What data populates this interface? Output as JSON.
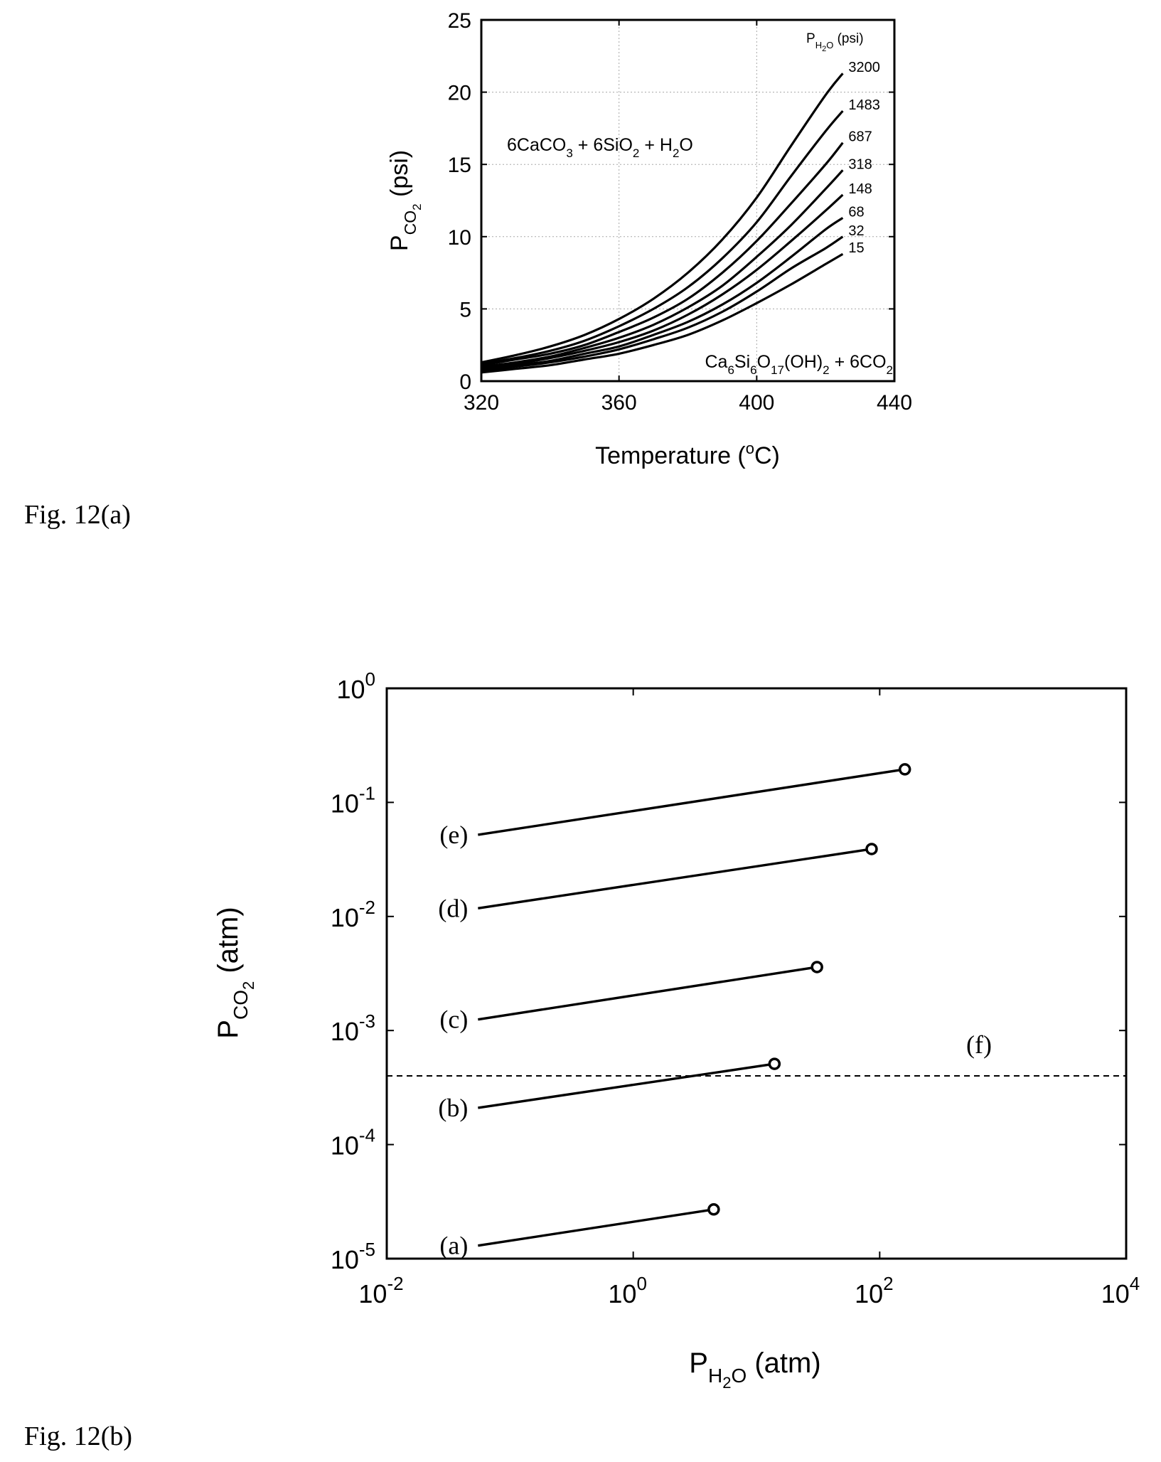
{
  "captions": {
    "fig_a": "Fig. 12(a)",
    "fig_b": "Fig. 12(b)"
  },
  "chart_data": [
    {
      "type": "line",
      "xlabel": "Temperature (oC)",
      "xlabel_parts": {
        "main": "Temperature (",
        "sup": "o",
        "tail": "C)"
      },
      "ylabel": "PCO2 (psi)",
      "ylabel_parts": {
        "main": "P",
        "sub": "CO",
        "subsub": "2",
        "tail": " (psi)"
      },
      "xlim": [
        320,
        440
      ],
      "ylim": [
        0,
        25
      ],
      "x_ticks": [
        "320",
        "360",
        "400",
        "440"
      ],
      "y_ticks": [
        "0",
        "5",
        "10",
        "15",
        "20",
        "25"
      ],
      "grid": true,
      "legend_title": "PH2O (psi)",
      "legend_title_parts": {
        "main": "P",
        "sub": "H",
        "sub2": "2",
        "sub3": "O",
        "tail": " (psi)"
      },
      "annotation_top": "6CaCO3 + 6SiO2 + H2O",
      "annotation_top_parts": [
        "6CaCO",
        "3",
        " + 6SiO",
        "2",
        " + H",
        "2",
        "O"
      ],
      "annotation_bottom": "Ca6Si6O17(OH)2 + 6CO2",
      "annotation_bottom_parts": [
        "Ca",
        "6",
        "Si",
        "6",
        "O",
        "17",
        "(OH)",
        "2",
        " + 6CO",
        "2"
      ],
      "curve_x": [
        320,
        330,
        340,
        350,
        360,
        370,
        380,
        390,
        400,
        410,
        420,
        425
      ],
      "series": [
        {
          "name": "3200",
          "values": [
            1.3,
            1.8,
            2.4,
            3.2,
            4.3,
            5.7,
            7.5,
            9.8,
            12.7,
            16.3,
            19.8,
            21.3
          ]
        },
        {
          "name": "1483",
          "values": [
            1.2,
            1.6,
            2.1,
            2.8,
            3.8,
            5.0,
            6.5,
            8.5,
            11.0,
            14.2,
            17.3,
            18.7
          ]
        },
        {
          "name": "687",
          "values": [
            1.1,
            1.5,
            1.9,
            2.5,
            3.4,
            4.4,
            5.7,
            7.5,
            9.7,
            12.3,
            15.0,
            16.5
          ]
        },
        {
          "name": "318",
          "values": [
            1.0,
            1.3,
            1.7,
            2.3,
            3.0,
            3.9,
            5.1,
            6.6,
            8.6,
            10.8,
            13.3,
            14.6
          ]
        },
        {
          "name": "148",
          "values": [
            0.9,
            1.2,
            1.6,
            2.1,
            2.7,
            3.5,
            4.6,
            6.0,
            7.7,
            9.7,
            11.8,
            12.9
          ]
        },
        {
          "name": "68",
          "values": [
            0.8,
            1.1,
            1.4,
            1.9,
            2.4,
            3.2,
            4.1,
            5.3,
            6.8,
            8.6,
            10.5,
            11.3
          ]
        },
        {
          "name": "32",
          "values": [
            0.7,
            1.0,
            1.3,
            1.7,
            2.2,
            2.9,
            3.7,
            4.8,
            6.2,
            7.8,
            9.2,
            10.0
          ]
        },
        {
          "name": "15",
          "values": [
            0.6,
            0.85,
            1.1,
            1.5,
            1.9,
            2.5,
            3.2,
            4.2,
            5.4,
            6.7,
            8.1,
            8.8
          ]
        }
      ]
    },
    {
      "type": "line",
      "xlabel": "PH2O (atm)",
      "xlabel_parts": {
        "main": "P",
        "sub": "H",
        "sub2": "2",
        "sub3": "O",
        "tail": " (atm)"
      },
      "ylabel": "PCO2 (atm)",
      "ylabel_parts": {
        "main": "P",
        "sub": "CO",
        "subsub": "2",
        "tail": " (atm)"
      },
      "x_scale": "log",
      "y_scale": "log",
      "xlim": [
        0.01,
        10000
      ],
      "ylim": [
        1e-05,
        1
      ],
      "x_ticks": [
        {
          "value": 0.01,
          "base": "10",
          "exp": "-2"
        },
        {
          "value": 1,
          "base": "10",
          "exp": "0"
        },
        {
          "value": 100,
          "base": "10",
          "exp": "2"
        },
        {
          "value": 10000,
          "base": "10",
          "exp": "4"
        }
      ],
      "y_ticks": [
        {
          "value": 1e-05,
          "base": "10",
          "exp": "-5"
        },
        {
          "value": 0.0001,
          "base": "10",
          "exp": "-4"
        },
        {
          "value": 0.001,
          "base": "10",
          "exp": "-3"
        },
        {
          "value": 0.01,
          "base": "10",
          "exp": "-2"
        },
        {
          "value": 0.1,
          "base": "10",
          "exp": "-1"
        },
        {
          "value": 1,
          "base": "10",
          "exp": "0"
        }
      ],
      "grid": false,
      "series": [
        {
          "name": "(a)",
          "x": [
            0.055,
            4.5
          ],
          "values": [
            1.3e-05,
            2.7e-05
          ]
        },
        {
          "name": "(b)",
          "x": [
            0.055,
            14
          ],
          "values": [
            0.00021,
            0.00051
          ]
        },
        {
          "name": "(c)",
          "x": [
            0.055,
            31
          ],
          "values": [
            0.00125,
            0.0036
          ]
        },
        {
          "name": "(d)",
          "x": [
            0.055,
            86
          ],
          "values": [
            0.0118,
            0.039
          ]
        },
        {
          "name": "(e)",
          "x": [
            0.055,
            160
          ],
          "values": [
            0.052,
            0.195
          ]
        }
      ],
      "reference_line": {
        "name": "(f)",
        "value": 0.0004
      }
    }
  ]
}
